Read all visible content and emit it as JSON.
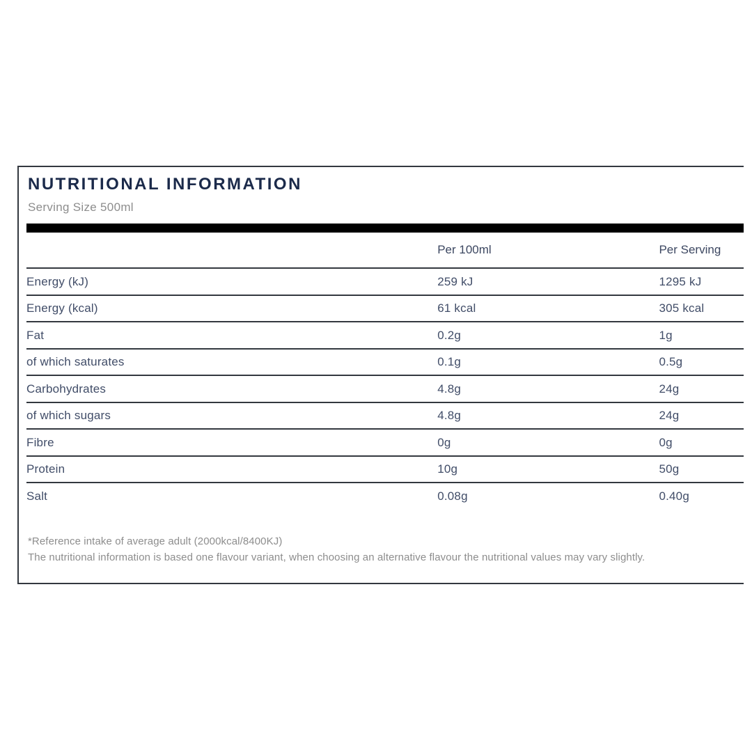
{
  "panel": {
    "title": "NUTRITIONAL INFORMATION",
    "serving_size": "Serving Size 500ml"
  },
  "table": {
    "columns": [
      "",
      "Per 100ml",
      "Per Serving"
    ],
    "rows": [
      {
        "label": "Energy (kJ)",
        "per_100ml": "259 kJ",
        "per_serving": "1295 kJ"
      },
      {
        "label": "Energy (kcal)",
        "per_100ml": "61 kcal",
        "per_serving": "305 kcal"
      },
      {
        "label": "Fat",
        "per_100ml": "0.2g",
        "per_serving": "1g"
      },
      {
        "label": "of which saturates",
        "per_100ml": "0.1g",
        "per_serving": "0.5g"
      },
      {
        "label": "Carbohydrates",
        "per_100ml": "4.8g",
        "per_serving": "24g"
      },
      {
        "label": "of which sugars",
        "per_100ml": "4.8g",
        "per_serving": "24g"
      },
      {
        "label": "Fibre",
        "per_100ml": "0g",
        "per_serving": "0g"
      },
      {
        "label": "Protein",
        "per_100ml": "10g",
        "per_serving": "50g"
      },
      {
        "label": "Salt",
        "per_100ml": "0.08g",
        "per_serving": "0.40g"
      }
    ]
  },
  "footnotes": [
    "*Reference intake of average adult (2000kcal/8400KJ)",
    "The nutritional information is based one flavour variant, when choosing an alternative flavour the nutritional values may vary slightly."
  ],
  "colors": {
    "title_text": "#1b2a4a",
    "body_text": "#414d68",
    "muted_text": "#8d8d8d",
    "rule": "#33383f",
    "bar": "#000000",
    "background": "#ffffff"
  }
}
